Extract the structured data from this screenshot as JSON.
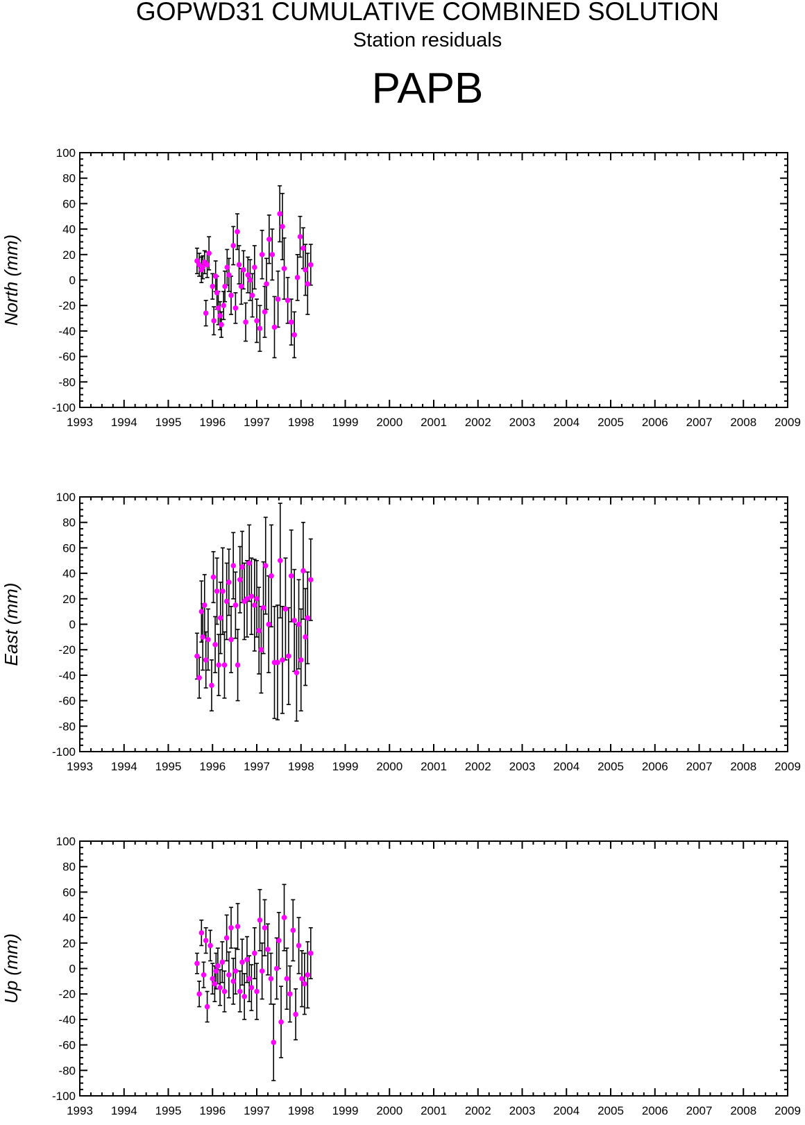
{
  "header": {
    "title": "GOPWD31 CUMULATIVE COMBINED SOLUTION",
    "subtitle": "Station residuals",
    "station": "PAPB"
  },
  "style": {
    "point_color": "#ff00ff",
    "errorbar_color": "#000000",
    "axis_color": "#000000"
  },
  "chart_data": [
    {
      "type": "scatter",
      "ylabel": "North (mm)",
      "xlim": [
        1993,
        2009
      ],
      "ylim": [
        -100,
        100
      ],
      "xticks": [
        "1993",
        "1994",
        "1995",
        "1996",
        "1997",
        "1998",
        "1999",
        "2000",
        "2001",
        "2002",
        "2003",
        "2004",
        "2005",
        "2006",
        "2007",
        "2008",
        "2009"
      ],
      "yticks": [
        "100",
        "80",
        "60",
        "40",
        "20",
        "0",
        "-20",
        "-40",
        "-60",
        "-80",
        "-100"
      ],
      "grid": false,
      "series": [
        {
          "x": [
            1995.65,
            1995.7,
            1995.75,
            1995.78,
            1995.82,
            1995.85,
            1995.88,
            1995.92,
            1996.0,
            1996.03,
            1996.07,
            1996.1,
            1996.13,
            1996.17,
            1996.2,
            1996.25,
            1996.28,
            1996.33,
            1996.37,
            1996.42,
            1996.47,
            1996.52,
            1996.56,
            1996.6,
            1996.65,
            1996.7,
            1996.75,
            1996.8,
            1996.85,
            1996.9,
            1996.95,
            1997.0,
            1997.07,
            1997.12,
            1997.18,
            1997.22,
            1997.28,
            1997.35,
            1997.4,
            1997.48,
            1997.52,
            1997.58,
            1997.62,
            1997.7,
            1997.78,
            1997.85,
            1997.92,
            1997.98,
            1998.05,
            1998.1,
            1998.15,
            1998.22
          ],
          "y": [
            15,
            12,
            8,
            10,
            14,
            -26,
            12,
            21,
            -5,
            -32,
            3,
            -10,
            -22,
            -28,
            -35,
            -20,
            -5,
            10,
            4,
            -12,
            27,
            -22,
            38,
            12,
            -5,
            8,
            -33,
            4,
            0,
            -12,
            10,
            -32,
            -38,
            20,
            -25,
            -3,
            32,
            20,
            -37,
            -15,
            52,
            42,
            9,
            -16,
            -33,
            -43,
            2,
            34,
            25,
            8,
            -3,
            12
          ],
          "err": [
            10,
            9,
            10,
            9,
            9,
            10,
            10,
            13,
            10,
            11,
            12,
            13,
            13,
            11,
            10,
            11,
            12,
            14,
            13,
            15,
            15,
            12,
            14,
            15,
            14,
            15,
            15,
            14,
            16,
            17,
            17,
            17,
            18,
            19,
            20,
            20,
            19,
            20,
            24,
            22,
            22,
            26,
            24,
            18,
            18,
            18,
            18,
            16,
            16,
            20,
            24,
            16
          ]
        }
      ]
    },
    {
      "type": "scatter",
      "ylabel": "East (mm)",
      "xlim": [
        1993,
        2009
      ],
      "ylim": [
        -100,
        100
      ],
      "xticks": [
        "1993",
        "1994",
        "1995",
        "1996",
        "1997",
        "1998",
        "1999",
        "2000",
        "2001",
        "2002",
        "2003",
        "2004",
        "2005",
        "2006",
        "2007",
        "2008",
        "2009"
      ],
      "yticks": [
        "100",
        "80",
        "60",
        "40",
        "20",
        "0",
        "-20",
        "-40",
        "-60",
        "-80",
        "-100"
      ],
      "grid": false,
      "series": [
        {
          "x": [
            1995.65,
            1995.7,
            1995.75,
            1995.78,
            1995.82,
            1995.85,
            1995.9,
            1995.98,
            1996.02,
            1996.06,
            1996.1,
            1996.14,
            1996.18,
            1996.23,
            1996.27,
            1996.32,
            1996.37,
            1996.42,
            1996.47,
            1996.52,
            1996.57,
            1996.62,
            1996.67,
            1996.72,
            1996.78,
            1996.83,
            1996.88,
            1996.95,
            1997.0,
            1997.05,
            1997.1,
            1997.15,
            1997.2,
            1997.27,
            1997.33,
            1997.4,
            1997.47,
            1997.53,
            1997.58,
            1997.65,
            1997.72,
            1997.78,
            1997.85,
            1997.9,
            1997.95,
            1998.0,
            1998.05,
            1998.1,
            1998.15,
            1998.22
          ],
          "y": [
            -25,
            -42,
            10,
            -10,
            15,
            -28,
            -12,
            -48,
            37,
            -16,
            26,
            -32,
            5,
            26,
            -32,
            18,
            33,
            -12,
            46,
            15,
            -32,
            35,
            45,
            18,
            20,
            48,
            22,
            15,
            20,
            -5,
            -20,
            13,
            46,
            0,
            38,
            -30,
            -30,
            50,
            -28,
            12,
            -25,
            38,
            3,
            -38,
            0,
            -28,
            42,
            -10,
            5,
            35
          ],
          "err": [
            18,
            16,
            24,
            26,
            24,
            22,
            24,
            20,
            20,
            22,
            26,
            24,
            28,
            34,
            26,
            30,
            26,
            26,
            26,
            26,
            28,
            26,
            28,
            30,
            30,
            30,
            30,
            36,
            30,
            34,
            34,
            36,
            38,
            38,
            40,
            44,
            45,
            45,
            42,
            40,
            38,
            36,
            40,
            38,
            35,
            40,
            38,
            38,
            36,
            32
          ]
        }
      ]
    },
    {
      "type": "scatter",
      "ylabel": "Up (mm)",
      "xlim": [
        1993,
        2009
      ],
      "ylim": [
        -100,
        100
      ],
      "xticks": [
        "1993",
        "1994",
        "1995",
        "1996",
        "1997",
        "1998",
        "1999",
        "2000",
        "2001",
        "2002",
        "2003",
        "2004",
        "2005",
        "2006",
        "2007",
        "2008",
        "2009"
      ],
      "yticks": [
        "100",
        "80",
        "60",
        "40",
        "20",
        "0",
        "-20",
        "-40",
        "-60",
        "-80",
        "-100"
      ],
      "grid": false,
      "series": [
        {
          "x": [
            1995.65,
            1995.7,
            1995.75,
            1995.8,
            1995.85,
            1995.88,
            1995.95,
            1996.0,
            1996.05,
            1996.08,
            1996.12,
            1996.17,
            1996.22,
            1996.27,
            1996.32,
            1996.37,
            1996.42,
            1996.47,
            1996.52,
            1996.57,
            1996.62,
            1996.67,
            1996.72,
            1996.78,
            1996.83,
            1996.88,
            1996.95,
            1997.0,
            1997.07,
            1997.12,
            1997.18,
            1997.25,
            1997.32,
            1997.38,
            1997.45,
            1997.5,
            1997.55,
            1997.62,
            1997.68,
            1997.75,
            1997.82,
            1997.88,
            1997.95,
            1998.02,
            1998.08,
            1998.15,
            1998.22
          ],
          "y": [
            4,
            -20,
            28,
            -5,
            22,
            -30,
            18,
            -8,
            -12,
            -2,
            2,
            -15,
            5,
            -18,
            24,
            -5,
            32,
            -10,
            -2,
            33,
            -18,
            5,
            -22,
            7,
            -8,
            -15,
            12,
            -18,
            38,
            -2,
            32,
            15,
            -8,
            -58,
            0,
            22,
            -42,
            40,
            -8,
            -20,
            30,
            -36,
            18,
            -8,
            -12,
            -5,
            12
          ],
          "err": [
            8,
            10,
            10,
            10,
            10,
            12,
            12,
            12,
            14,
            14,
            14,
            14,
            16,
            16,
            18,
            18,
            16,
            18,
            18,
            18,
            16,
            18,
            18,
            18,
            18,
            18,
            20,
            22,
            24,
            22,
            22,
            20,
            20,
            30,
            24,
            22,
            28,
            26,
            24,
            22,
            24,
            20,
            22,
            22,
            24,
            26,
            20
          ]
        }
      ]
    }
  ]
}
